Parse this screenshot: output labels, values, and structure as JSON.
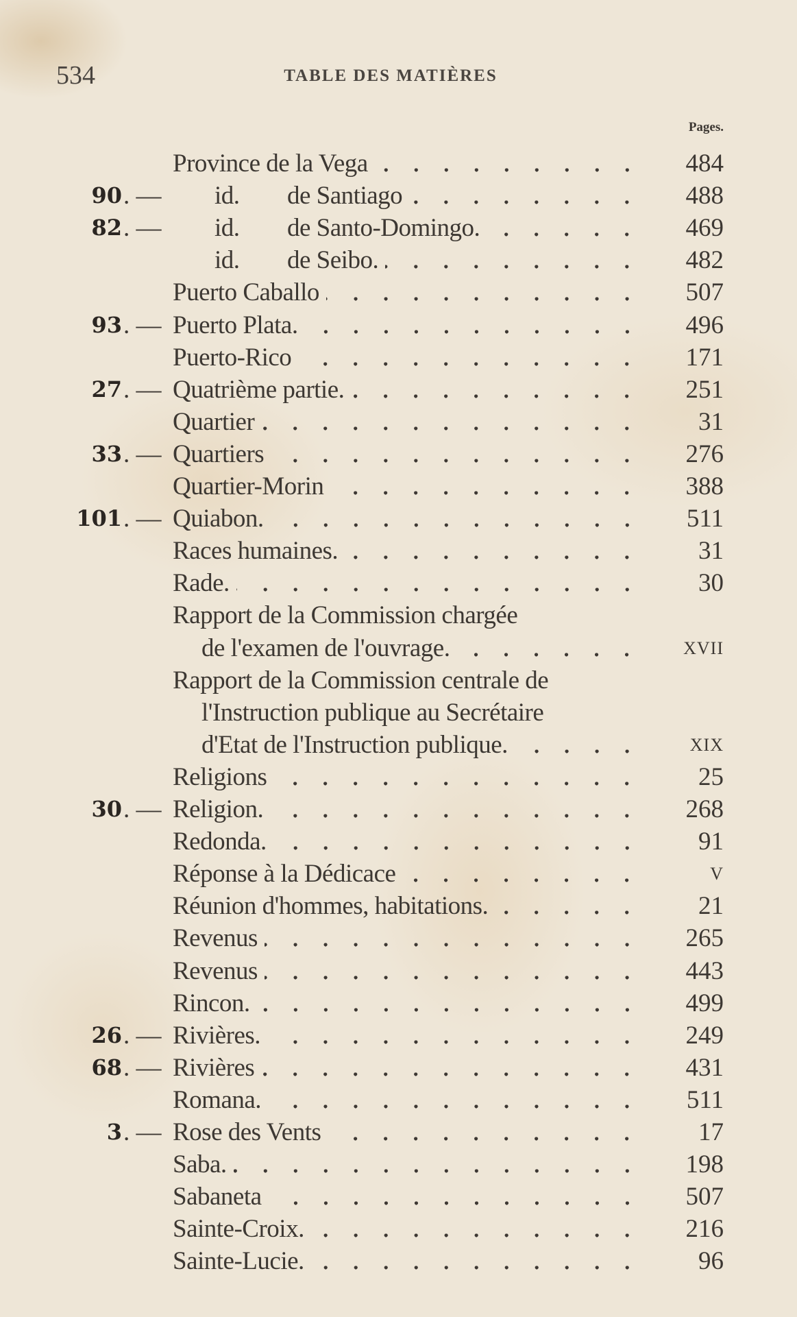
{
  "header": {
    "page_number": "534",
    "title": "TABLE DES MATIÈRES",
    "pages_label": "Pages."
  },
  "entries": [
    {
      "num": "",
      "title": "Province de la Vega",
      "page": "484",
      "indent": "main"
    },
    {
      "num": "90",
      "prefix": "id.",
      "title": "de Santiago",
      "page": "488",
      "indent": "id"
    },
    {
      "num": "82",
      "prefix": "id.",
      "title": "de Santo-Domingo.",
      "page": "469",
      "indent": "id"
    },
    {
      "num": "",
      "prefix": "id.",
      "title": "de Seibo.",
      "page": "482",
      "indent": "id"
    },
    {
      "num": "",
      "title": "Puerto Caballo",
      "page": "507",
      "indent": "main"
    },
    {
      "num": "93",
      "title": "Puerto Plata.",
      "page": "496",
      "indent": "main"
    },
    {
      "num": "",
      "title": "Puerto-Rico",
      "page": "171",
      "indent": "main"
    },
    {
      "num": "27",
      "title": "Quatrième partie.",
      "page": "251",
      "indent": "main"
    },
    {
      "num": "",
      "title": "Quartier",
      "page": "31",
      "indent": "main"
    },
    {
      "num": "33",
      "title": "Quartiers",
      "page": "276",
      "indent": "main"
    },
    {
      "num": "",
      "title": "Quartier-Morin",
      "page": "388",
      "indent": "main"
    },
    {
      "num": "101",
      "title": "Quiabon.",
      "page": "511",
      "indent": "main"
    },
    {
      "num": "",
      "title": "Races humaines.",
      "page": "31",
      "indent": "main"
    },
    {
      "num": "",
      "title": "Rade.",
      "page": "30",
      "indent": "main"
    },
    {
      "num": "",
      "title": "Rapport de la Commission chargée",
      "page": "",
      "indent": "main",
      "noleader": true
    },
    {
      "num": "",
      "title": "de l'examen de l'ouvrage.",
      "page": "XVII",
      "indent": "cont",
      "roman": true
    },
    {
      "num": "",
      "title": "Rapport de la Commission centrale de",
      "page": "",
      "indent": "main",
      "noleader": true
    },
    {
      "num": "",
      "title": "l'Instruction publique au Secrétaire",
      "page": "",
      "indent": "cont",
      "noleader": true
    },
    {
      "num": "",
      "title": "d'Etat de l'Instruction publique.",
      "page": "XIX",
      "indent": "cont",
      "roman": true
    },
    {
      "num": "",
      "title": "Religions",
      "page": "25",
      "indent": "main"
    },
    {
      "num": "30",
      "title": "Religion.",
      "page": "268",
      "indent": "main"
    },
    {
      "num": "",
      "title": "Redonda.",
      "page": "91",
      "indent": "main"
    },
    {
      "num": "",
      "title": "Réponse à la Dédicace",
      "page": "V",
      "indent": "main",
      "roman": true
    },
    {
      "num": "",
      "title": "Réunion d'hommes, habitations.",
      "page": "21",
      "indent": "main"
    },
    {
      "num": "",
      "title": "Revenus",
      "page": "265",
      "indent": "main"
    },
    {
      "num": "",
      "title": "Revenus",
      "page": "443",
      "indent": "main"
    },
    {
      "num": "",
      "title": "Rincon.",
      "page": "499",
      "indent": "main"
    },
    {
      "num": "26",
      "title": "Rivières.",
      "page": "249",
      "indent": "main"
    },
    {
      "num": "68",
      "title": "Rivières",
      "page": "431",
      "indent": "main"
    },
    {
      "num": "",
      "title": "Romana.",
      "page": "511",
      "indent": "main"
    },
    {
      "num": "3",
      "title": "Rose des Vents",
      "page": "17",
      "indent": "main"
    },
    {
      "num": "",
      "title": "Saba.",
      "page": "198",
      "indent": "main"
    },
    {
      "num": "",
      "title": "Sabaneta",
      "page": "507",
      "indent": "main"
    },
    {
      "num": "",
      "title": "Sainte-Croix.",
      "page": "216",
      "indent": "main"
    },
    {
      "num": "",
      "title": "Sainte-Lucie.",
      "page": "96",
      "indent": "main"
    }
  ],
  "num_separator": ". —",
  "colors": {
    "paper": "#eee6d7",
    "ink": "#3d3833"
  }
}
